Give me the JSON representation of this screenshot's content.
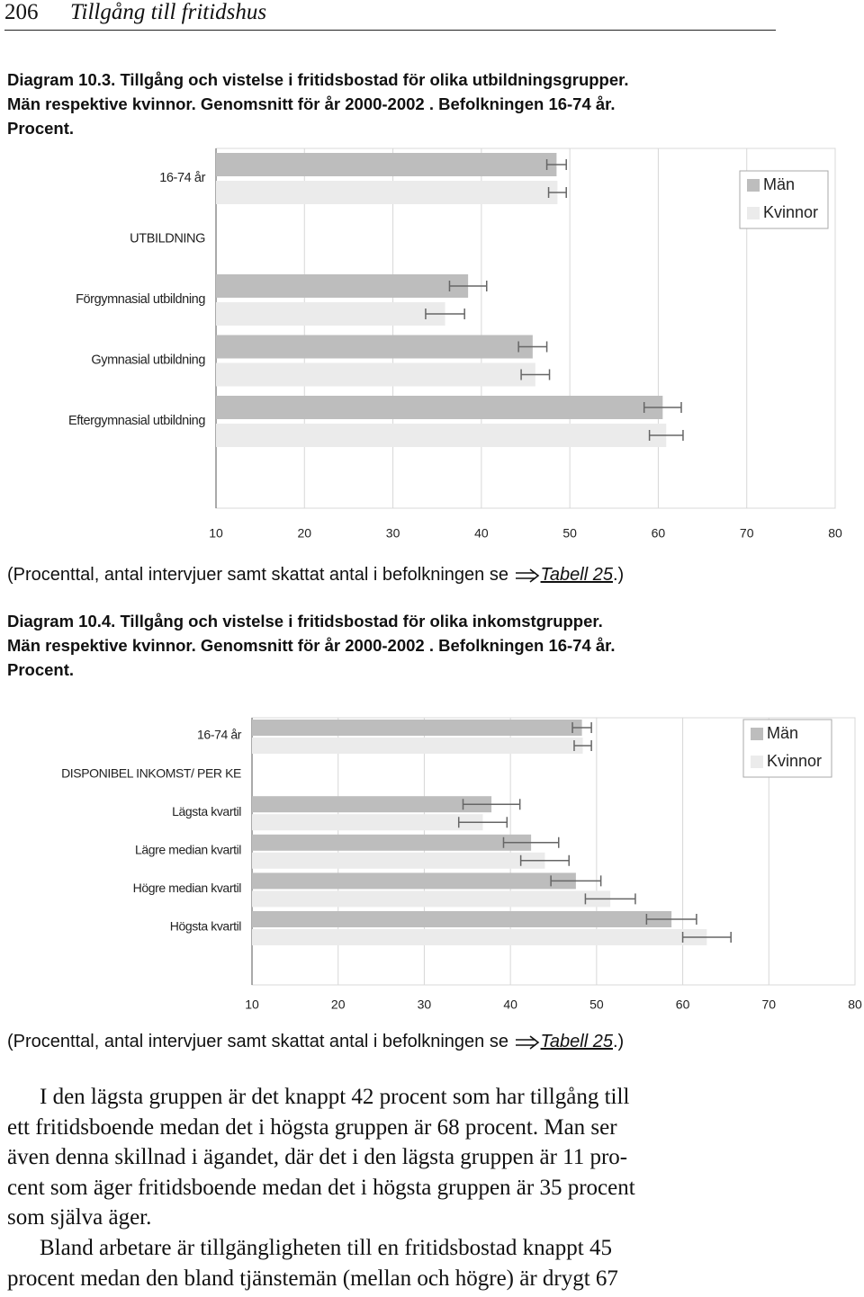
{
  "header": {
    "page": "206",
    "title": "Tillgång till fritidshus"
  },
  "chart_data": [
    {
      "type": "bar",
      "orientation": "horizontal",
      "title": [
        "Diagram 10.3. Tillgång och vistelse i fritidsbostad för olika utbildningsgrupper.",
        "Män respektive kvinnor. Genomsnitt för år 2000-2002 . Befolkningen 16-74 år.",
        "Procent."
      ],
      "categories": [
        "16-74 år",
        "UTBILDNING",
        "Förgymnasial utbildning",
        "Gymnasial utbildning",
        "Eftergymnasial utbildning"
      ],
      "series": [
        {
          "name": "Män",
          "color": "#bdbdbd",
          "values": [
            48.5,
            null,
            38.5,
            45.8,
            60.5
          ],
          "errors": [
            1.1,
            null,
            2.1,
            1.6,
            2.1
          ]
        },
        {
          "name": "Kvinnor",
          "color": "#ebebeb",
          "values": [
            48.6,
            null,
            35.9,
            46.1,
            60.9
          ],
          "errors": [
            1.0,
            null,
            2.2,
            1.6,
            1.9
          ]
        }
      ],
      "xlim": [
        10,
        80
      ],
      "xticks": [
        10,
        20,
        30,
        40,
        50,
        60,
        70,
        80
      ],
      "grid": true,
      "legend": "upper right",
      "note": {
        "text": "(Procenttal, antal intervjuer samt skattat antal i befolkningen se",
        "link": "Tabell 25",
        "end": ".)"
      }
    },
    {
      "type": "bar",
      "orientation": "horizontal",
      "title": [
        "Diagram 10.4. Tillgång och vistelse i fritidsbostad för olika inkomstgrupper.",
        "Män respektive kvinnor. Genomsnitt för år 2000-2002 . Befolkningen 16-74 år.",
        "Procent."
      ],
      "categories": [
        "16-74 år",
        "DISPONIBEL INKOMST/ PER KE",
        "Lägsta kvartil",
        "Lägre median kvartil",
        "Högre median kvartil",
        "Högsta kvartil"
      ],
      "series": [
        {
          "name": "Män",
          "color": "#bdbdbd",
          "values": [
            48.3,
            null,
            37.8,
            42.4,
            47.6,
            58.7
          ],
          "errors": [
            1.1,
            null,
            3.3,
            3.2,
            2.9,
            2.9
          ]
        },
        {
          "name": "Kvinnor",
          "color": "#ebebeb",
          "values": [
            48.4,
            null,
            36.8,
            44.0,
            51.6,
            62.8
          ],
          "errors": [
            1.0,
            null,
            2.8,
            2.8,
            2.9,
            2.8
          ]
        }
      ],
      "xlim": [
        10,
        80
      ],
      "xticks": [
        10,
        20,
        30,
        40,
        50,
        60,
        70,
        80
      ],
      "grid": true,
      "legend": "upper right",
      "note": {
        "text": "(Procenttal, antal intervjuer samt skattat antal i befolkningen se",
        "link": "Tabell 25",
        "end": ".)"
      }
    }
  ],
  "body": [
    [
      "I den lägsta gruppen är det knappt 42 procent som har tillgång till",
      "ett fritidsboende medan det i högsta gruppen är 68 procent. Man ser",
      "även denna skillnad i ägandet, där det i den lägsta gruppen är 11 pro-",
      "cent som äger fritidsboende medan det i högsta gruppen är 35 procent",
      "som själva äger."
    ],
    [
      "Bland arbetare är tillgängligheten till en fritidsbostad knappt 45",
      "procent medan den bland tjänstemän (mellan och högre) är drygt 67"
    ]
  ]
}
